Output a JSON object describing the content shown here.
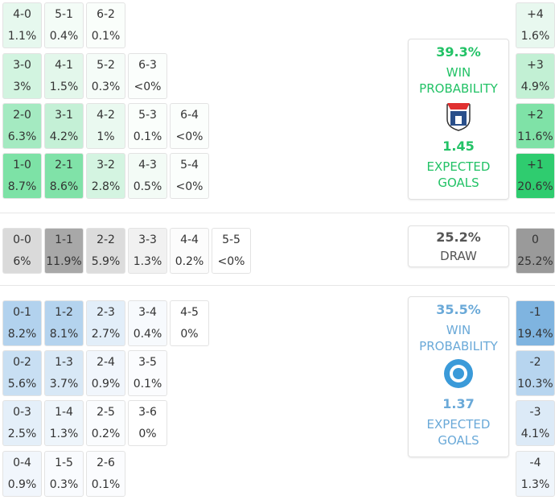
{
  "home": {
    "rows": [
      [
        {
          "score": "4-0",
          "prob": "1.1%",
          "color": "#e6f8ee"
        },
        {
          "score": "5-1",
          "prob": "0.4%",
          "color": "#f4fcf7"
        },
        {
          "score": "6-2",
          "prob": "0.1%",
          "color": "#fafefb"
        }
      ],
      [
        {
          "score": "3-0",
          "prob": "3%",
          "color": "#d2f4e0"
        },
        {
          "score": "4-1",
          "prob": "1.5%",
          "color": "#e3f7eb"
        },
        {
          "score": "5-2",
          "prob": "0.3%",
          "color": "#f5fcf8"
        },
        {
          "score": "6-3",
          "prob": "<0%",
          "color": "#fbfefc"
        }
      ],
      [
        {
          "score": "2-0",
          "prob": "6.3%",
          "color": "#a4eac1"
        },
        {
          "score": "3-1",
          "prob": "4.2%",
          "color": "#c4f0d6"
        },
        {
          "score": "4-2",
          "prob": "1%",
          "color": "#eaf9f0"
        },
        {
          "score": "5-3",
          "prob": "0.1%",
          "color": "#fafefb"
        },
        {
          "score": "6-4",
          "prob": "<0%",
          "color": "#fbfefc"
        }
      ],
      [
        {
          "score": "1-0",
          "prob": "8.7%",
          "color": "#7de2a6"
        },
        {
          "score": "2-1",
          "prob": "8.6%",
          "color": "#80e2a8"
        },
        {
          "score": "3-2",
          "prob": "2.8%",
          "color": "#d4f4e1"
        },
        {
          "score": "4-3",
          "prob": "0.5%",
          "color": "#f3fbf6"
        },
        {
          "score": "5-4",
          "prob": "<0%",
          "color": "#fbfefc"
        }
      ]
    ]
  },
  "draw": {
    "cells": [
      {
        "score": "0-0",
        "prob": "6%",
        "color": "#dadada"
      },
      {
        "score": "1-1",
        "prob": "11.9%",
        "color": "#a8a8a8"
      },
      {
        "score": "2-2",
        "prob": "5.9%",
        "color": "#dcdcdc"
      },
      {
        "score": "3-3",
        "prob": "1.3%",
        "color": "#f1f1f1"
      },
      {
        "score": "4-4",
        "prob": "0.2%",
        "color": "#fcfcfc"
      },
      {
        "score": "5-5",
        "prob": "<0%",
        "color": "#ffffff"
      }
    ]
  },
  "away": {
    "rows": [
      [
        {
          "score": "0-1",
          "prob": "8.2%",
          "color": "#b2d2ee"
        },
        {
          "score": "1-2",
          "prob": "8.1%",
          "color": "#b4d3ee"
        },
        {
          "score": "2-3",
          "prob": "2.7%",
          "color": "#e2eef9"
        },
        {
          "score": "3-4",
          "prob": "0.4%",
          "color": "#f7fafd"
        },
        {
          "score": "4-5",
          "prob": "0%",
          "color": "#ffffff"
        }
      ],
      [
        {
          "score": "0-2",
          "prob": "5.6%",
          "color": "#c8dff3"
        },
        {
          "score": "1-3",
          "prob": "3.7%",
          "color": "#d8e8f6"
        },
        {
          "score": "2-4",
          "prob": "0.9%",
          "color": "#f1f6fc"
        },
        {
          "score": "3-5",
          "prob": "0.1%",
          "color": "#fbfcfe"
        }
      ],
      [
        {
          "score": "0-3",
          "prob": "2.5%",
          "color": "#e4eff9"
        },
        {
          "score": "1-4",
          "prob": "1.3%",
          "color": "#eef5fb"
        },
        {
          "score": "2-5",
          "prob": "0.2%",
          "color": "#fafcfe"
        },
        {
          "score": "3-6",
          "prob": "0%",
          "color": "#ffffff"
        }
      ],
      [
        {
          "score": "0-4",
          "prob": "0.9%",
          "color": "#f1f6fc"
        },
        {
          "score": "1-5",
          "prob": "0.3%",
          "color": "#f9fbfe"
        },
        {
          "score": "2-6",
          "prob": "0.1%",
          "color": "#fbfcfe"
        }
      ]
    ]
  },
  "margins": [
    {
      "label": "+4",
      "prob": "1.6%",
      "color": "#e8f8ef"
    },
    {
      "label": "+3",
      "prob": "4.9%",
      "color": "#c2f0d4"
    },
    {
      "label": "+2",
      "prob": "11.6%",
      "color": "#7fe2a7"
    },
    {
      "label": "+1",
      "prob": "20.6%",
      "color": "#2fcc6f"
    },
    {
      "label": "0",
      "prob": "25.2%",
      "color": "#9a9a9a"
    },
    {
      "label": "-1",
      "prob": "19.4%",
      "color": "#7fb4e0"
    },
    {
      "label": "-2",
      "prob": "10.3%",
      "color": "#b7d5ef"
    },
    {
      "label": "-3",
      "prob": "4.1%",
      "color": "#dceaf7"
    },
    {
      "label": "-4",
      "prob": "1.3%",
      "color": "#eff5fb"
    }
  ],
  "home_summary": {
    "win_probability": "39.3%",
    "win_label": "WIN PROBABILITY",
    "expected_goals": "1.45",
    "xg_label": "EXPECTED GOALS"
  },
  "draw_summary": {
    "probability": "25.2%",
    "label": "DRAW"
  },
  "away_summary": {
    "win_probability": "35.5%",
    "win_label": "WIN PROBABILITY",
    "expected_goals": "1.37",
    "xg_label": "EXPECTED GOALS"
  }
}
